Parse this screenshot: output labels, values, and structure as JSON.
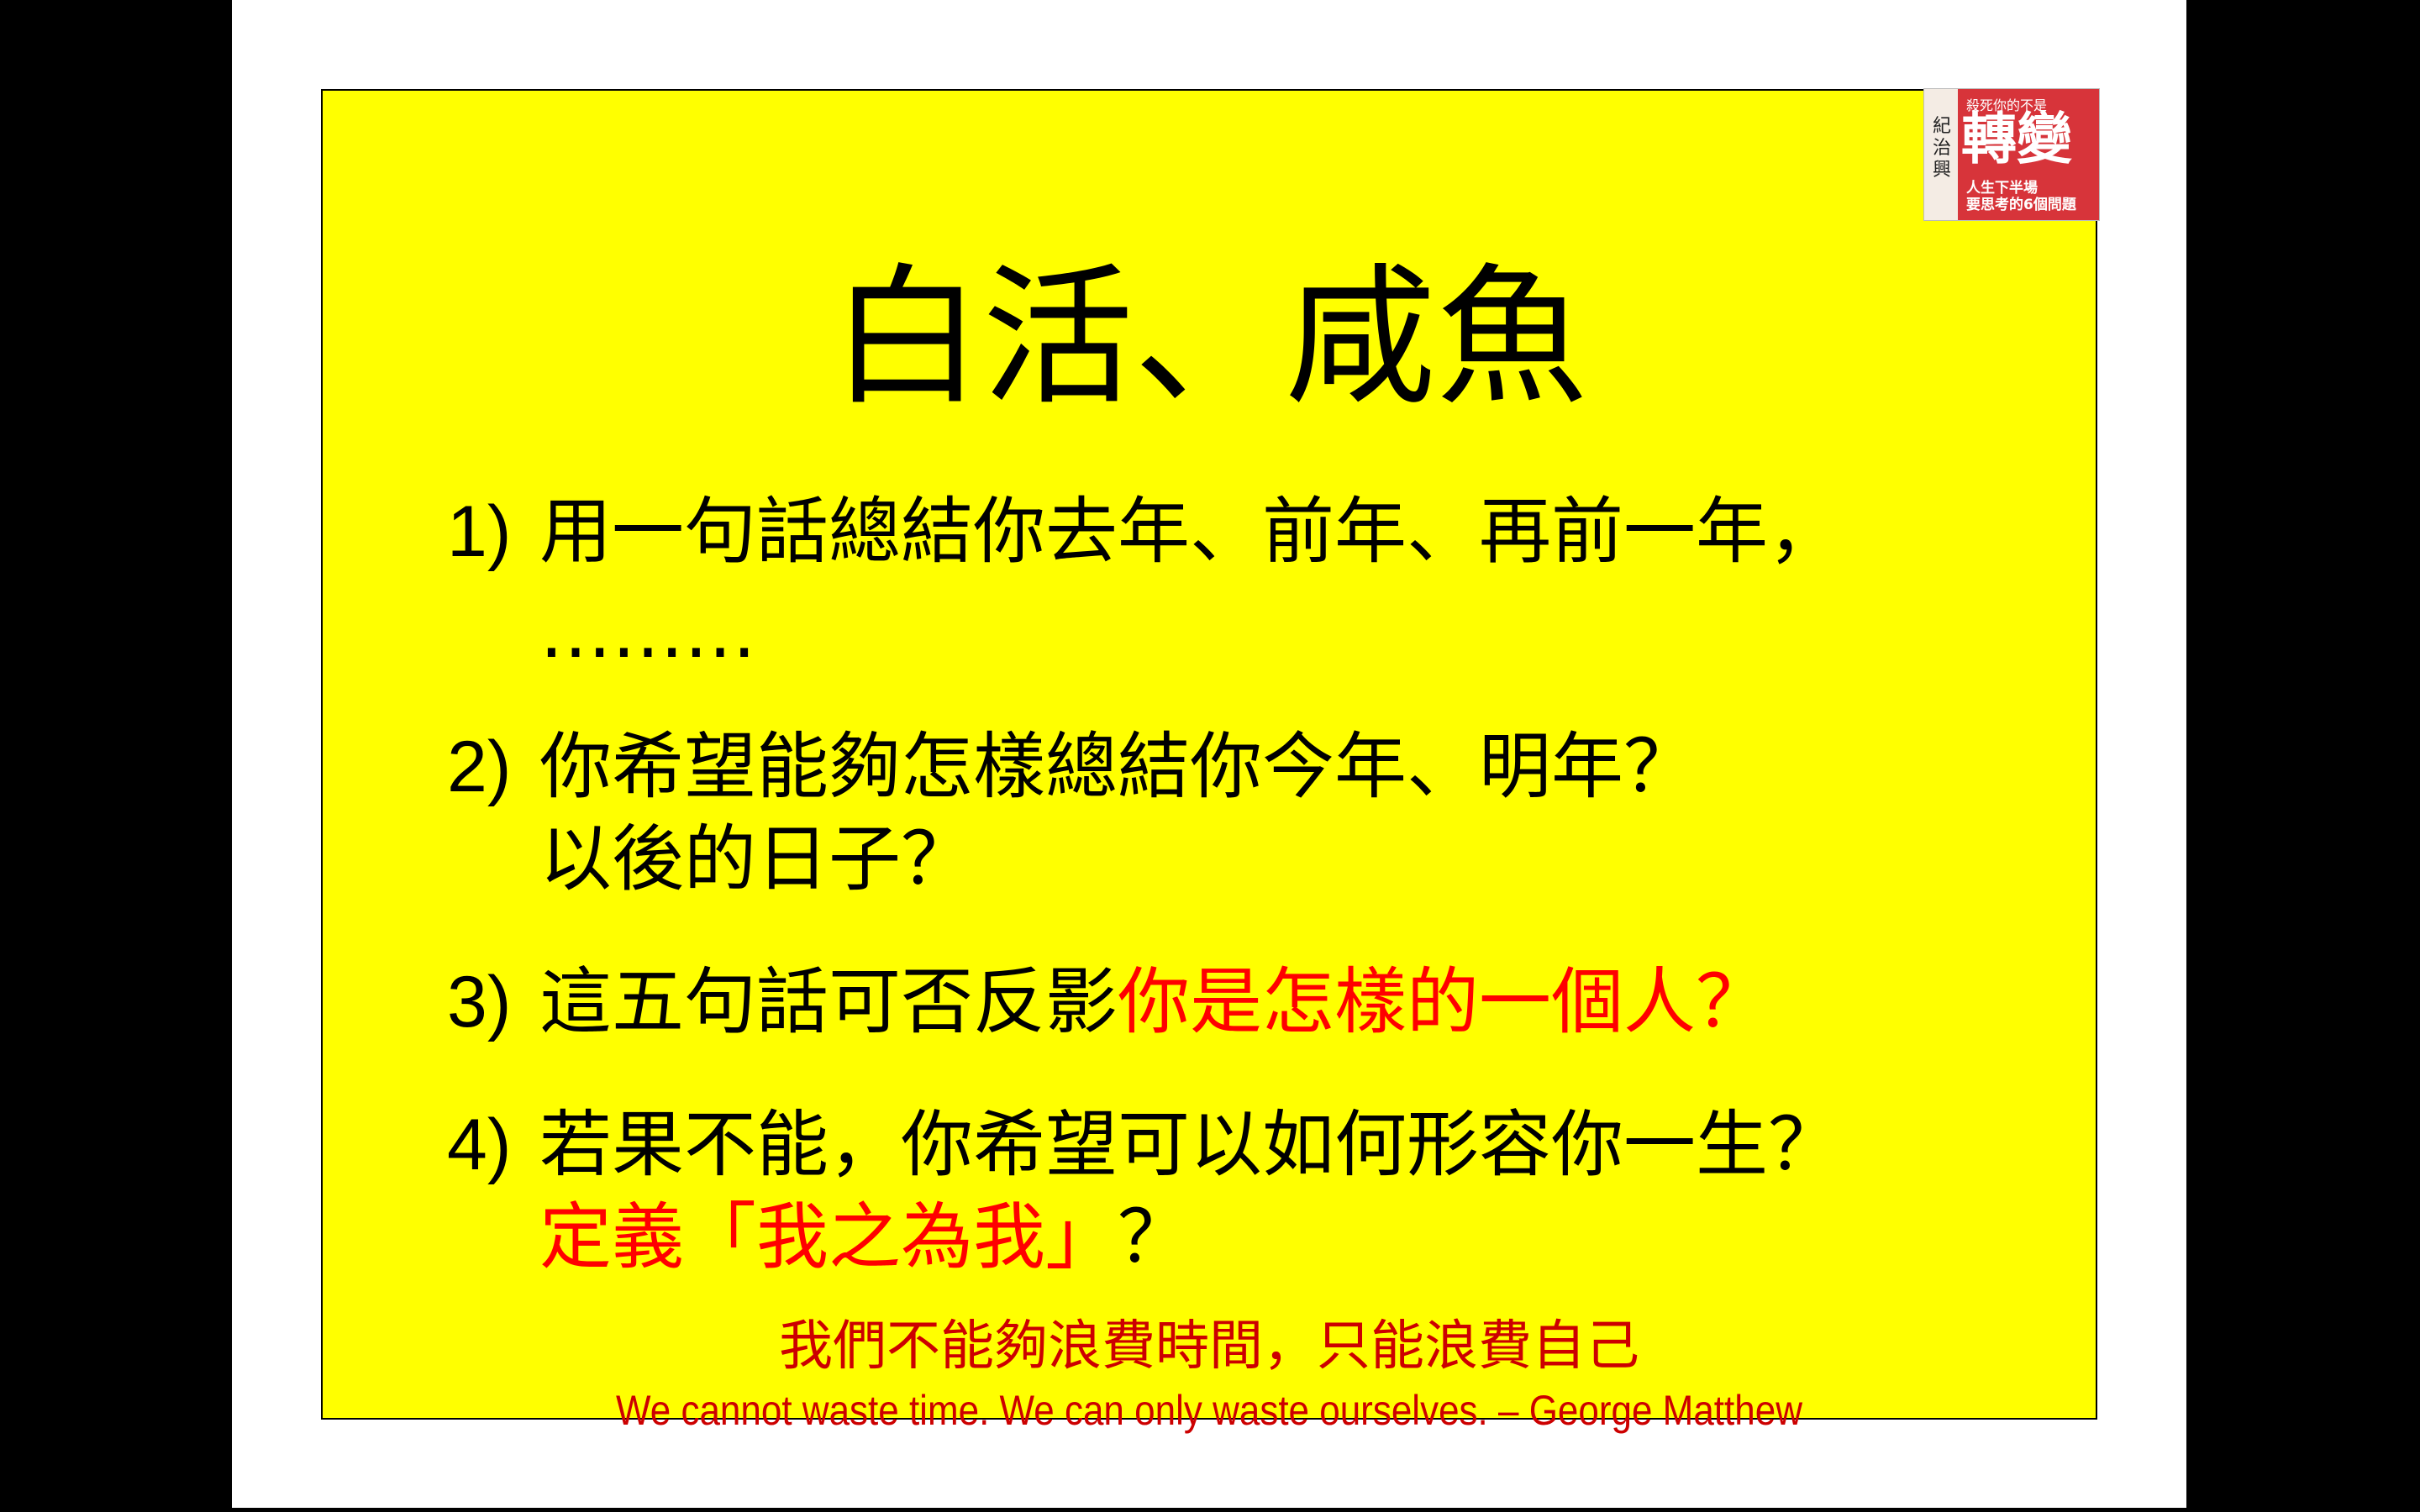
{
  "slide": {
    "title": "白活、咸魚",
    "items": [
      {
        "num": "1)",
        "lines": [
          "用一句話總結你去年、前年、再前一年，",
          "………"
        ]
      },
      {
        "num": "2)",
        "lines": [
          "你希望能夠怎樣總結你今年、明年？",
          "以後的日子？"
        ]
      },
      {
        "num": "3)",
        "line_black": "這五句話可否反影",
        "line_red": "你是怎樣的一個人？"
      },
      {
        "num": "4)",
        "line1": "若果不能，你希望可以如何形容你一生？",
        "line2_red": "定義「我之為我」",
        "line2_black": "？"
      }
    ],
    "quote_zh": "我們不能夠浪費時間，只能浪費自己",
    "quote_en": "We cannot waste time. We can only waste ourselves. – George Matthew"
  },
  "book": {
    "author": "紀治興",
    "small_title": "殺死你的不是",
    "big_title": "轉變",
    "subtitle_1": "人生下半場",
    "subtitle_2": "要思考的6個問題"
  },
  "colors": {
    "slide_bg": "#ffff00",
    "highlight": "#ff0000",
    "quote": "#cc0000",
    "book_red": "#d7343a"
  }
}
